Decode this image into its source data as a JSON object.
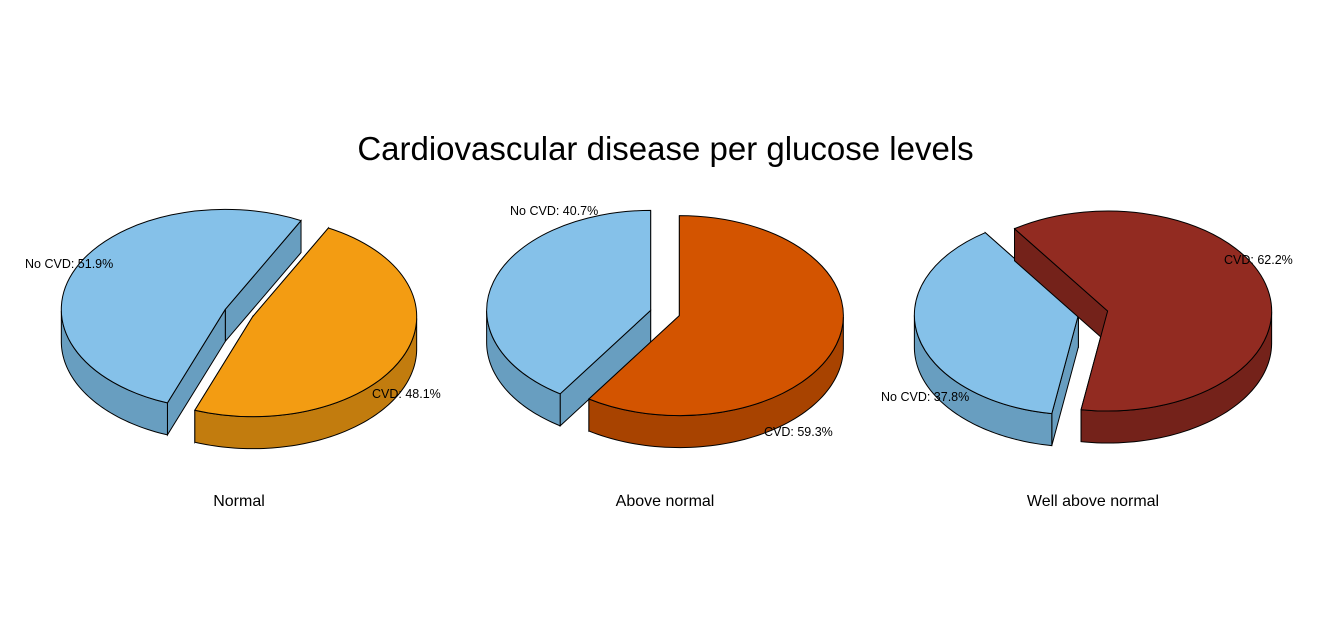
{
  "title": "Cardiovascular disease per glucose levels",
  "chart_data": [
    {
      "type": "pie",
      "subtitle": "Normal",
      "slices": [
        {
          "label": "No CVD: 51.9%",
          "value": 51.9,
          "color": "#85C1E9",
          "side_color": "#689EC0"
        },
        {
          "label": "CVD: 48.1%",
          "value": 48.1,
          "color": "#F39C12",
          "side_color": "#C27C0E"
        }
      ]
    },
    {
      "type": "pie",
      "subtitle": "Above normal",
      "slices": [
        {
          "label": "No CVD: 40.7%",
          "value": 40.7,
          "color": "#85C1E9",
          "side_color": "#689EC0"
        },
        {
          "label": "CVD: 59.3%",
          "value": 59.3,
          "color": "#D35400",
          "side_color": "#A84300"
        }
      ]
    },
    {
      "type": "pie",
      "subtitle": "Well above normal",
      "slices": [
        {
          "label": "No CVD: 37.8%",
          "value": 37.8,
          "color": "#85C1E9",
          "side_color": "#689EC0"
        },
        {
          "label": "CVD: 62.2%",
          "value": 62.2,
          "color": "#922B21",
          "side_color": "#74221A"
        }
      ]
    }
  ]
}
